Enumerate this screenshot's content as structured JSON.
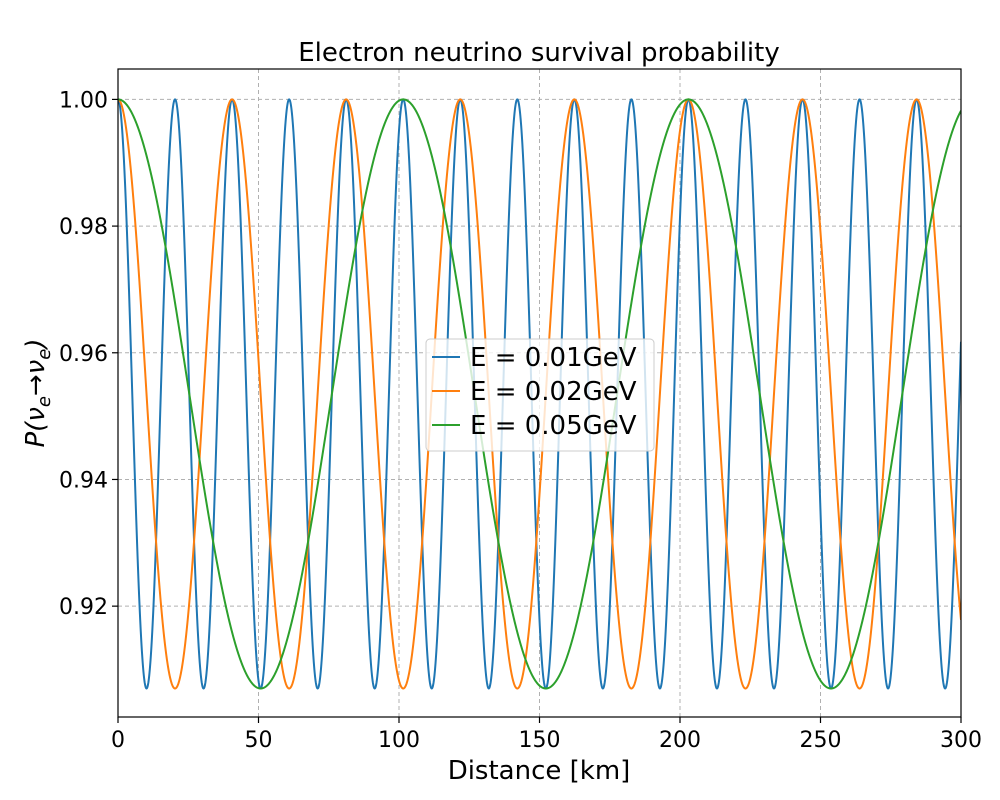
{
  "chart_data": {
    "type": "line",
    "title": "Electron neutrino survival probability",
    "xlabel": "Distance [km]",
    "ylabel_main": "P(",
    "ylabel_nu": "ν",
    "ylabel_sub": "e",
    "ylabel_arrow": "→",
    "ylabel_close": ")",
    "xlim": [
      0,
      300
    ],
    "ylim": [
      0.9025,
      1.0048
    ],
    "xticks": [
      0,
      50,
      100,
      150,
      200,
      250,
      300
    ],
    "xtick_labels": [
      "0",
      "50",
      "100",
      "150",
      "200",
      "250",
      "300"
    ],
    "yticks": [
      0.92,
      0.94,
      0.96,
      0.98,
      1.0
    ],
    "ytick_labels": [
      "0.92",
      "0.94",
      "0.96",
      "0.98",
      "1.00"
    ],
    "grid": true,
    "legend_position": "center",
    "formula": {
      "amplitude": 0.093,
      "minimum": 0.907,
      "period_km_per_GeV": 2.03
    },
    "series": [
      {
        "name": "E = 0.01GeV",
        "energy": 0.01,
        "color": "#1f77b4"
      },
      {
        "name": "E = 0.02GeV",
        "energy": 0.02,
        "color": "#ff7f0e"
      },
      {
        "name": "E = 0.05GeV",
        "energy": 0.05,
        "color": "#2ca02c"
      }
    ]
  }
}
